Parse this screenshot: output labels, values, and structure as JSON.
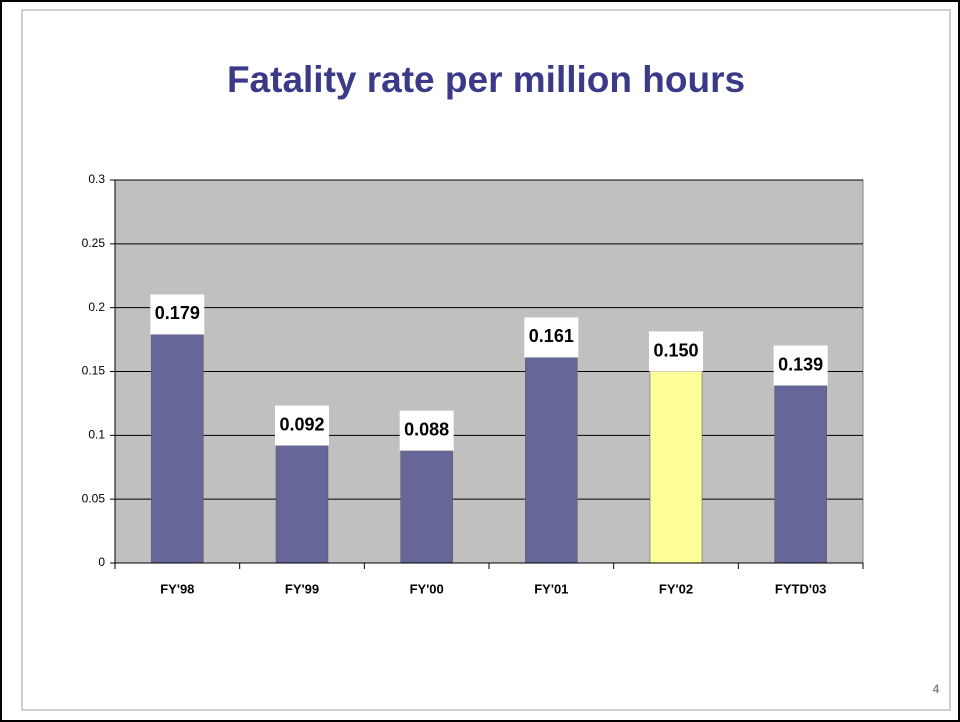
{
  "chart_data": {
    "type": "bar",
    "title": "Fatality rate per million hours",
    "categories": [
      "FY'98",
      "FY'99",
      "FY'00",
      "FY'01",
      "FY'02",
      "FYTD'03"
    ],
    "values": [
      0.179,
      0.092,
      0.088,
      0.161,
      0.15,
      0.139
    ],
    "value_labels": [
      "0.179",
      "0.092",
      "0.088",
      "0.161",
      "0.150",
      "0.139"
    ],
    "colors": [
      "#666699",
      "#666699",
      "#666699",
      "#666699",
      "#ffff99",
      "#666699"
    ],
    "ylim": [
      0,
      0.3
    ],
    "yticks": [
      0,
      0.05,
      0.1,
      0.15,
      0.2,
      0.25,
      0.3
    ],
    "grid": true
  },
  "slide_number": 4
}
